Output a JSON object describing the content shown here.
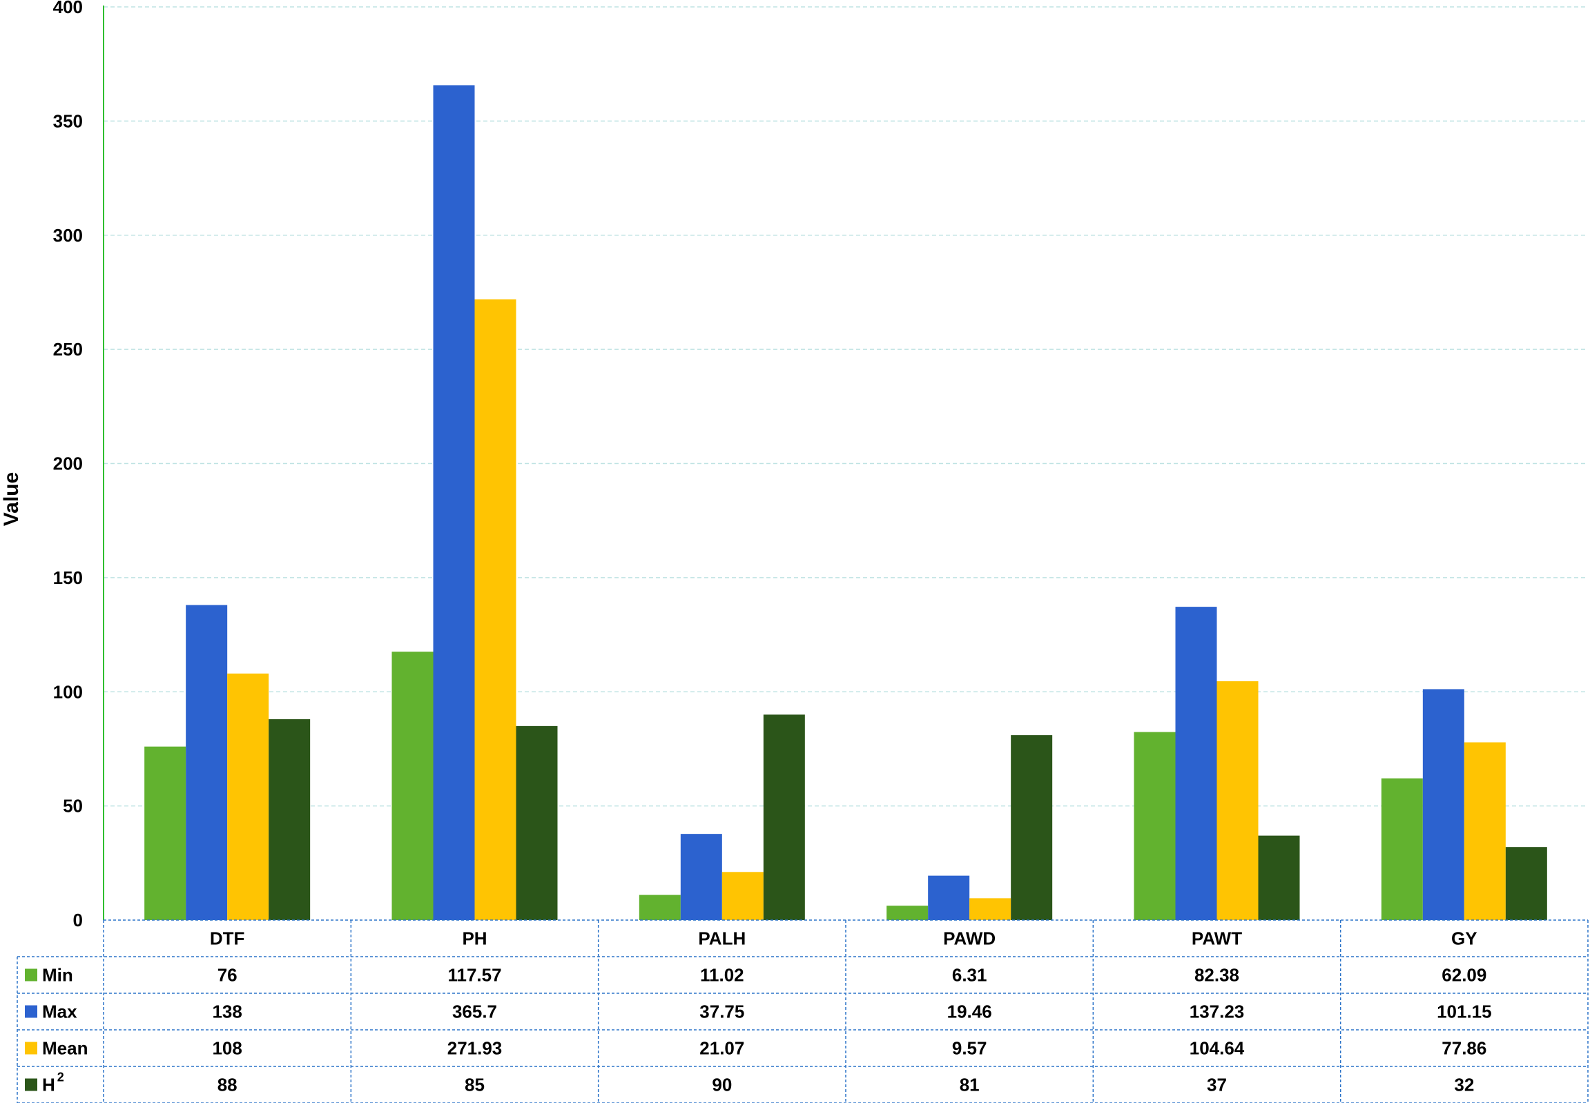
{
  "chart_data": {
    "type": "bar",
    "title": "",
    "xlabel": "",
    "ylabel": "Value",
    "ylim": [
      0,
      400
    ],
    "yticks": [
      0,
      50,
      100,
      150,
      200,
      250,
      300,
      350,
      400
    ],
    "grid": true,
    "legend": "data-table",
    "categories": [
      "DTF",
      "PH",
      "PALH",
      "PAWD",
      "PAWT",
      "GY"
    ],
    "series": [
      {
        "name": "Min",
        "color": "#62b22f",
        "values": [
          76,
          117.57,
          11.02,
          6.31,
          82.38,
          62.09
        ],
        "labels": [
          "76",
          "117.57",
          "11.02",
          "6.31",
          "82.38",
          "62.09"
        ]
      },
      {
        "name": "Max",
        "color": "#2c62cf",
        "values": [
          138,
          365.7,
          37.75,
          19.46,
          137.23,
          101.15
        ],
        "labels": [
          "138",
          "365.7",
          "37.75",
          "19.46",
          "137.23",
          "101.15"
        ]
      },
      {
        "name": "Mean",
        "color": "#ffc402",
        "values": [
          108,
          271.93,
          21.07,
          9.57,
          104.64,
          77.86
        ],
        "labels": [
          "108",
          "271.93",
          "21.07",
          "9.57",
          "104.64",
          "77.86"
        ]
      },
      {
        "name": "H",
        "name_superscript": "2",
        "color": "#2b5519",
        "values": [
          88,
          85,
          90,
          81,
          37,
          32
        ],
        "labels": [
          "88",
          "85",
          "90",
          "81",
          "37",
          "32"
        ]
      }
    ]
  }
}
